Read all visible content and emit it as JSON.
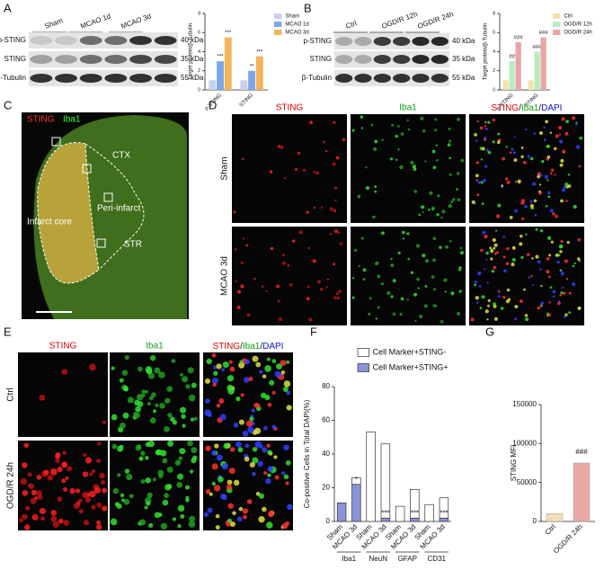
{
  "figure": {
    "A": {
      "label": "A",
      "lanes": [
        "Sham",
        "MCAO 1d",
        "MCAO 3d"
      ],
      "rows": [
        "p-STING",
        "STING",
        "β-Tubulin"
      ],
      "sizes": [
        "40 kDa",
        "35 kDa",
        "55 kDa"
      ]
    },
    "B": {
      "label": "B",
      "lanes": [
        "Ctrl",
        "OGD/R 12h",
        "OGD/R 24h"
      ],
      "rows": [
        "p-STING",
        "STING",
        "β-Tubulin"
      ],
      "sizes": [
        "40 kDa",
        "35 kDa",
        "55 kDa"
      ]
    },
    "C": {
      "label": "C",
      "stains": [
        "STING",
        "Iba1"
      ],
      "regions": [
        "CTX",
        "Peri-infarct",
        "Infarct core",
        "STR"
      ]
    },
    "D": {
      "label": "D",
      "columns": [
        "STING",
        "Iba1"
      ],
      "merge": [
        "STING",
        "/",
        "Iba1",
        "/",
        "DAPI"
      ],
      "rows": [
        "Sham",
        "MCAO 3d"
      ]
    },
    "E": {
      "label": "E",
      "columns": [
        "STING",
        "Iba1"
      ],
      "merge": [
        "STING",
        "/",
        "Iba1",
        "/",
        "DAPI"
      ],
      "rows": [
        "Ctrl",
        "OGD/R 24h"
      ]
    },
    "F": {
      "label": "F"
    },
    "G": {
      "label": "G"
    }
  },
  "chart_data": [
    {
      "type": "bar",
      "ylabel": "Target protein/β-Tubulin",
      "categories": [
        "p-STING",
        "STING"
      ],
      "series": [
        {
          "name": "Sham",
          "color": "#c8cff0",
          "values": [
            1,
            1
          ],
          "sig": [
            null,
            null
          ]
        },
        {
          "name": "MCAO 1d",
          "color": "#7fa6e8",
          "values": [
            3,
            2
          ],
          "sig": [
            "***",
            "**"
          ]
        },
        {
          "name": "MCAO 3d",
          "color": "#f5b35a",
          "values": [
            5.5,
            3.5
          ],
          "sig": [
            "***",
            "***"
          ]
        }
      ],
      "ylim": [
        0,
        8
      ],
      "yticks": [
        0,
        2,
        4,
        6,
        8
      ],
      "legend": "right"
    },
    {
      "type": "bar",
      "ylabel": "Target protein/β-Tubulin",
      "categories": [
        "p-STING",
        "STING"
      ],
      "series": [
        {
          "name": "Ctrl",
          "color": "#f5e2b0",
          "values": [
            1,
            1
          ],
          "sig": [
            null,
            null
          ]
        },
        {
          "name": "OGD/R 12h",
          "color": "#b9ecc0",
          "values": [
            3,
            4
          ],
          "sig": [
            "##",
            "###"
          ]
        },
        {
          "name": "OGD/R 24h",
          "color": "#e8a6a8",
          "values": [
            5,
            5.5
          ],
          "sig": [
            "###",
            "###"
          ]
        }
      ],
      "ylim": [
        0,
        8
      ],
      "yticks": [
        0,
        2,
        4,
        6,
        8
      ],
      "legend": "right"
    },
    {
      "type": "stacked_bar",
      "ylabel": "Co-positive Cells in Total DAPI(%)",
      "categories": [
        "Sham",
        "MCAO 3d",
        "Sham",
        "MCAO 3d",
        "Sham",
        "MCAO 3d",
        "Sham",
        "MCAO 3d"
      ],
      "groups": [
        "Iba1",
        "NeuN",
        "GFAP",
        "CD31"
      ],
      "series": [
        {
          "name": "Cell Marker+STING+",
          "color": "#8a94d6",
          "values": [
            11,
            22,
            0,
            2,
            0,
            2,
            0,
            2
          ],
          "sig": [
            null,
            "*",
            null,
            "***",
            null,
            "***",
            null,
            "***"
          ]
        },
        {
          "name": "Cell Marker+STING-",
          "color": "#ffffff",
          "values": [
            0,
            4,
            53,
            44,
            9,
            17,
            10,
            12
          ]
        }
      ],
      "ylim": [
        0,
        80
      ],
      "yticks": [
        0,
        20,
        40,
        60,
        80
      ],
      "legend": "top"
    },
    {
      "type": "bar",
      "ylabel": "STING MFI",
      "categories": [
        "Ctrl",
        "OGD/R 24h"
      ],
      "values": [
        10000,
        75000
      ],
      "colors": [
        "#f2dfb5",
        "#e9a8a8"
      ],
      "sig": [
        null,
        "###"
      ],
      "ylim": [
        0,
        150000
      ],
      "yticks": [
        0,
        50000,
        100000,
        150000
      ]
    }
  ]
}
